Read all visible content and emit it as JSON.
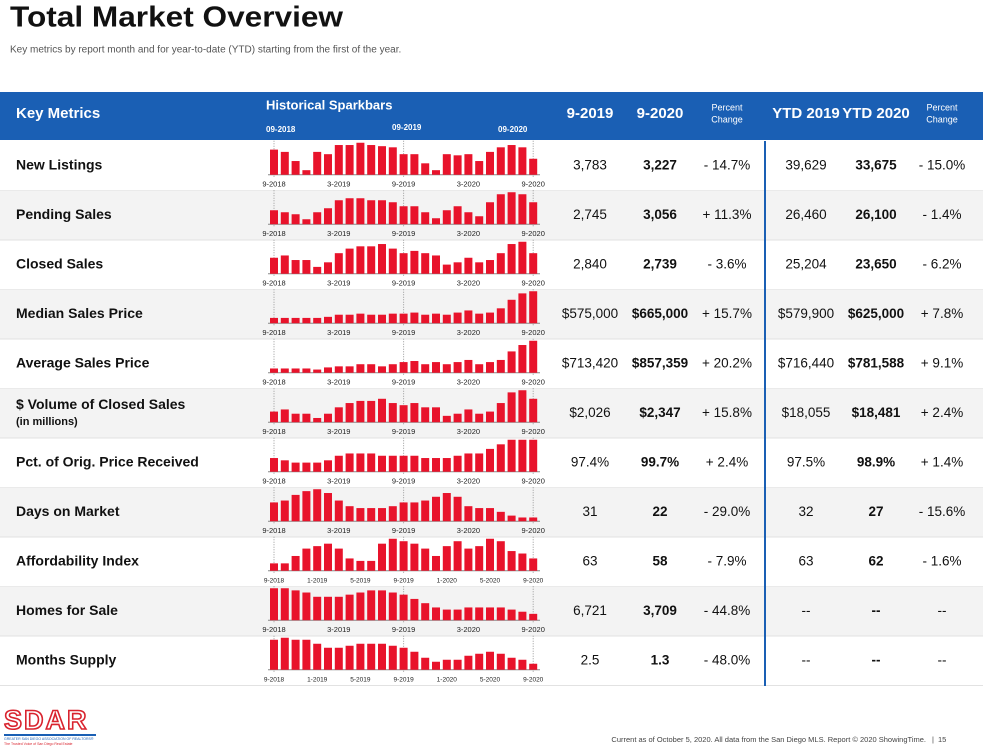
{
  "header": {
    "title": "Total Market Overview",
    "subtitle": "Key metrics by report month and for year-to-date (YTD) starting from the first of the year."
  },
  "table": {
    "columns": {
      "metric": "Key Metrics",
      "sparkbars": "Historical Sparkbars",
      "spark_marks": [
        "09-2018",
        "09-2019",
        "09-2020"
      ],
      "month_a": "9-2019",
      "month_b": "9-2020",
      "pct": [
        "Percent",
        "Change"
      ],
      "ytd_a": "YTD 2019",
      "ytd_b": "YTD 2020",
      "ytd_pct": [
        "Percent",
        "Change"
      ]
    },
    "rows": [
      {
        "label": "New Listings",
        "spark": [
          22,
          20,
          12,
          4,
          20,
          18,
          26,
          26,
          28,
          26,
          25,
          24,
          18,
          18,
          10,
          4,
          18,
          17,
          18,
          12,
          20,
          24,
          26,
          24,
          14
        ],
        "spark_labels": [
          "9-2018",
          "3-2019",
          "9-2019",
          "3-2020",
          "9-2020"
        ],
        "cells": [
          "3,783",
          "3,227",
          "- 14.7%",
          "39,629",
          "33,675",
          "- 15.0%"
        ]
      },
      {
        "label": "Pending Sales",
        "spark": [
          14,
          12,
          10,
          5,
          12,
          16,
          24,
          26,
          26,
          24,
          24,
          22,
          18,
          18,
          12,
          6,
          14,
          18,
          12,
          8,
          22,
          30,
          32,
          30,
          22
        ],
        "spark_labels": [
          "9-2018",
          "3-2019",
          "9-2019",
          "3-2020",
          "9-2020"
        ],
        "cells": [
          "2,745",
          "3,056",
          "+ 11.3%",
          "26,460",
          "26,100",
          "- 1.4%"
        ]
      },
      {
        "label": "Closed Sales",
        "spark": [
          14,
          16,
          12,
          12,
          6,
          10,
          18,
          22,
          24,
          24,
          26,
          22,
          18,
          20,
          18,
          16,
          8,
          10,
          14,
          10,
          12,
          18,
          26,
          28,
          18
        ],
        "spark_labels": [
          "9-2018",
          "3-2019",
          "9-2019",
          "3-2020",
          "9-2020"
        ],
        "cells": [
          "2,840",
          "2,739",
          "- 3.6%",
          "25,204",
          "23,650",
          "- 6.2%"
        ]
      },
      {
        "label": "Median Sales Price",
        "spark": [
          5,
          5,
          5,
          5,
          5,
          6,
          8,
          8,
          9,
          8,
          8,
          9,
          9,
          10,
          8,
          9,
          8,
          10,
          12,
          9,
          10,
          14,
          22,
          28,
          30
        ],
        "spark_labels": [
          "9-2018",
          "3-2019",
          "9-2019",
          "3-2020",
          "9-2020"
        ],
        "cells": [
          "$575,000",
          "$665,000",
          "+ 15.7%",
          "$579,900",
          "$625,000",
          "+ 7.8%"
        ]
      },
      {
        "label": "Average Sales Price",
        "spark": [
          4,
          4,
          4,
          4,
          3,
          5,
          6,
          6,
          8,
          8,
          6,
          8,
          10,
          11,
          8,
          10,
          8,
          10,
          12,
          8,
          10,
          12,
          20,
          26,
          30
        ],
        "spark_labels": [
          "9-2018",
          "3-2019",
          "9-2019",
          "3-2020",
          "9-2020"
        ],
        "cells": [
          "$713,420",
          "$857,359",
          "+ 20.2%",
          "$716,440",
          "$781,588",
          "+ 9.1%"
        ]
      },
      {
        "label": "$ Volume of Closed Sales",
        "sublabel": "(in millions)",
        "spark": [
          10,
          12,
          8,
          8,
          4,
          8,
          14,
          18,
          20,
          20,
          22,
          18,
          16,
          18,
          14,
          14,
          6,
          8,
          12,
          8,
          10,
          18,
          28,
          30,
          22
        ],
        "spark_labels": [
          "9-2018",
          "3-2019",
          "9-2019",
          "3-2020",
          "9-2020"
        ],
        "cells": [
          "$2,026",
          "$2,347",
          "+ 15.8%",
          "$18,055",
          "$18,481",
          "+ 2.4%"
        ]
      },
      {
        "label": "Pct. of Orig. Price Received",
        "spark": [
          12,
          10,
          8,
          8,
          8,
          10,
          14,
          16,
          16,
          16,
          14,
          14,
          14,
          14,
          12,
          12,
          12,
          14,
          16,
          16,
          20,
          24,
          28,
          28,
          28
        ],
        "spark_labels": [
          "9-2018",
          "3-2019",
          "9-2019",
          "3-2020",
          "9-2020"
        ],
        "cells": [
          "97.4%",
          "99.7%",
          "+ 2.4%",
          "97.5%",
          "98.9%",
          "+ 1.4%"
        ]
      },
      {
        "label": "Days on Market",
        "spark": [
          20,
          22,
          28,
          32,
          34,
          30,
          22,
          16,
          14,
          14,
          14,
          16,
          20,
          20,
          22,
          26,
          30,
          26,
          16,
          14,
          14,
          10,
          6,
          4,
          4
        ],
        "spark_labels": [
          "9-2018",
          "3-2019",
          "9-2019",
          "3-2020",
          "9-2020"
        ],
        "cells": [
          "31",
          "22",
          "- 29.0%",
          "32",
          "27",
          "- 15.6%"
        ]
      },
      {
        "label": "Affordability Index",
        "spark": [
          6,
          6,
          12,
          18,
          20,
          22,
          18,
          10,
          8,
          8,
          22,
          26,
          24,
          22,
          18,
          12,
          20,
          24,
          18,
          20,
          26,
          24,
          16,
          14,
          10
        ],
        "spark_labels": [
          "9-2018",
          "1-2019",
          "5-2019",
          "9-2019",
          "1-2020",
          "5-2020",
          "9-2020"
        ],
        "cells": [
          "63",
          "58",
          "- 7.9%",
          "63",
          "62",
          "- 1.6%"
        ]
      },
      {
        "label": "Homes for Sale",
        "spark": [
          30,
          30,
          28,
          26,
          22,
          22,
          22,
          24,
          26,
          28,
          28,
          26,
          24,
          20,
          16,
          12,
          10,
          10,
          12,
          12,
          12,
          12,
          10,
          8,
          6
        ],
        "spark_labels": [
          "9-2018",
          "3-2019",
          "9-2019",
          "3-2020",
          "9-2020"
        ],
        "cells": [
          "6,721",
          "3,709",
          "- 44.8%",
          "--",
          "--",
          "--"
        ]
      },
      {
        "label": "Months Supply",
        "spark": [
          30,
          32,
          30,
          30,
          26,
          22,
          22,
          24,
          26,
          26,
          26,
          24,
          22,
          18,
          12,
          8,
          10,
          10,
          14,
          16,
          18,
          16,
          12,
          10,
          6
        ],
        "spark_labels": [
          "9-2018",
          "1-2019",
          "5-2019",
          "9-2019",
          "1-2020",
          "5-2020",
          "9-2020"
        ],
        "cells": [
          "2.5",
          "1.3",
          "- 48.0%",
          "--",
          "--",
          "--"
        ]
      }
    ]
  },
  "footer": {
    "logo": "SDAR",
    "logo_line1": "GREATER SAN DIEGO ASSOCIATION OF REALTORS®",
    "logo_line2": "The Trusted Voice of San Diego Real Estate",
    "note": "Current as of October 5, 2020. All data from the San Diego MLS. Report © 2020 ShowingTime.",
    "page": "15"
  }
}
